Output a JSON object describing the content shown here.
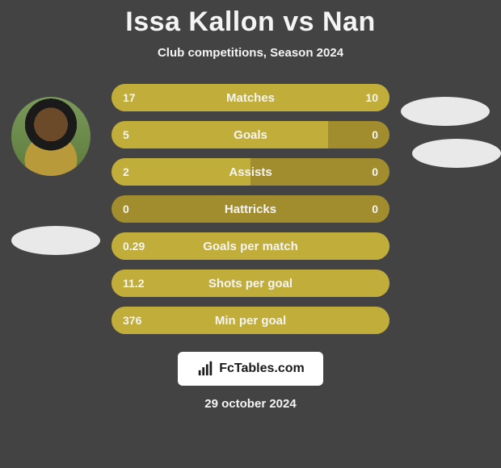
{
  "colors": {
    "page_bg": "#434343",
    "text": "#f4f4f4",
    "title": "#f4f4f4",
    "bar_track": "#a18d2e",
    "bar_fill": "#c0ad3a",
    "oval": "#e9e9e9",
    "brand_bg": "#ffffff",
    "brand_text": "#1a1a1a"
  },
  "header": {
    "title": "Issa Kallon vs Nan",
    "subtitle": "Club competitions, Season 2024"
  },
  "stats": [
    {
      "label": "Matches",
      "left_text": "17",
      "right_text": "10",
      "left_pct": 63,
      "right_pct": 37
    },
    {
      "label": "Goals",
      "left_text": "5",
      "right_text": "0",
      "left_pct": 78,
      "right_pct": 0
    },
    {
      "label": "Assists",
      "left_text": "2",
      "right_text": "0",
      "left_pct": 50,
      "right_pct": 0
    },
    {
      "label": "Hattricks",
      "left_text": "0",
      "right_text": "0",
      "left_pct": 0,
      "right_pct": 0
    },
    {
      "label": "Goals per match",
      "left_text": "0.29",
      "right_text": "",
      "left_pct": 100,
      "right_pct": 0
    },
    {
      "label": "Shots per goal",
      "left_text": "11.2",
      "right_text": "",
      "left_pct": 100,
      "right_pct": 0
    },
    {
      "label": "Min per goal",
      "left_text": "376",
      "right_text": "",
      "left_pct": 100,
      "right_pct": 0
    }
  ],
  "brand": {
    "text": "FcTables.com"
  },
  "date": "29 october 2024"
}
